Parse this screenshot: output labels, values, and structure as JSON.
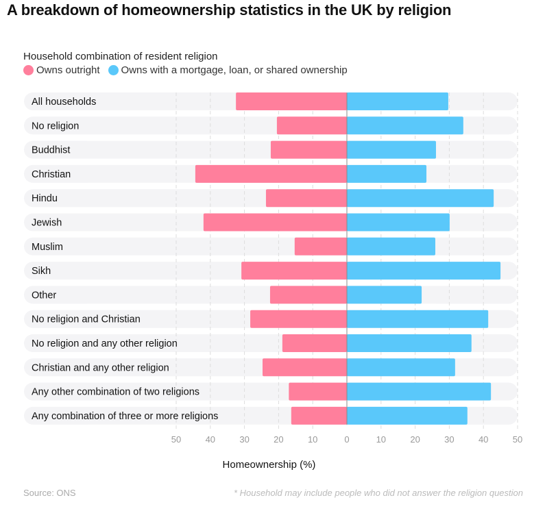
{
  "title": "A breakdown of homeownership statistics in the UK by religion",
  "chart_data": {
    "type": "bar",
    "orientation": "horizontal-diverging",
    "subtitle": "Household combination of resident religion",
    "categories": [
      "All households",
      "No religion",
      "Buddhist",
      "Christian",
      "Hindu",
      "Jewish",
      "Muslim",
      "Sikh",
      "Other",
      "No religion and Christian",
      "No religion and any other religion",
      "Christian and any other religion",
      "Any other combination of two religions",
      "Any combination of three or more religions"
    ],
    "series": [
      {
        "name": "Owns outright",
        "color": "#ff7f9c",
        "direction": "left",
        "values": [
          32.5,
          20.5,
          22.3,
          44.4,
          23.7,
          42.0,
          15.3,
          30.9,
          22.5,
          28.3,
          18.9,
          24.7,
          17.0,
          16.3
        ]
      },
      {
        "name": "Owns with a mortgage, loan, or shared ownership",
        "color": "#5ac8fa",
        "direction": "right",
        "values": [
          29.7,
          34.1,
          26.1,
          23.3,
          43.0,
          30.1,
          25.9,
          45.0,
          21.9,
          41.4,
          36.5,
          31.7,
          42.2,
          35.3
        ]
      }
    ],
    "xticks": [
      "50",
      "40",
      "30",
      "20",
      "10",
      "0",
      "10",
      "20",
      "30",
      "40",
      "50"
    ],
    "xlim": [
      -50,
      50
    ],
    "xlabel": "Homeownership (%)",
    "grid": true,
    "legend": "top-left"
  },
  "source": "Source: ONS",
  "note": "* Household may include people who did not answer the religion question"
}
